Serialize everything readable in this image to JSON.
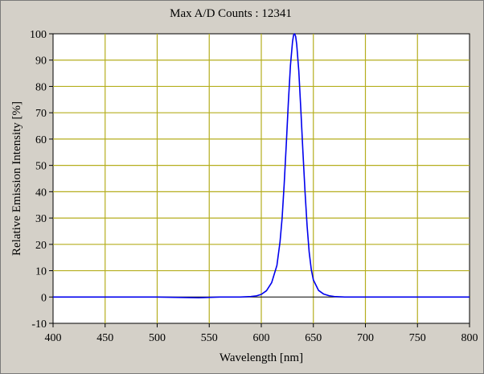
{
  "window": {
    "title": "Max A/D Counts : 12341"
  },
  "colors": {
    "background": "#d4d0c8",
    "plot_area": "#ffffff",
    "grid": "#b5ae1e",
    "zero_line": "#000000",
    "series": "#0000ee"
  },
  "chart_data": {
    "type": "line",
    "title": "Max A/D Counts : 12341",
    "xlabel": "Wavelength [nm]",
    "ylabel": "Relative Emission Intensity [%]",
    "xlim": [
      400,
      800
    ],
    "ylim": [
      -10,
      100
    ],
    "x_ticks": [
      "400",
      "450",
      "500",
      "550",
      "600",
      "650",
      "700",
      "750",
      "800"
    ],
    "y_ticks": [
      "-10",
      "0",
      "10",
      "20",
      "30",
      "40",
      "50",
      "60",
      "70",
      "80",
      "90",
      "100"
    ],
    "grid": true,
    "legend": "none",
    "series": [
      {
        "color": "#0000ee",
        "x": [
          400,
          500,
          540,
          560,
          580,
          590,
          595,
          600,
          605,
          610,
          615,
          618,
          620,
          622,
          624,
          626,
          628,
          630,
          631,
          632,
          633,
          634,
          636,
          638,
          640,
          642,
          644,
          646,
          648,
          650,
          655,
          660,
          665,
          670,
          680,
          700,
          800
        ],
        "y": [
          0,
          0,
          -0.3,
          0,
          0,
          0.2,
          0.4,
          1.0,
          2.4,
          5.5,
          12,
          21,
          30,
          43,
          58,
          74,
          88,
          97,
          99.5,
          100,
          99,
          96,
          86,
          71,
          55,
          40,
          27,
          17,
          10.5,
          6.5,
          2.5,
          1.1,
          0.5,
          0.2,
          0,
          0,
          0
        ]
      }
    ]
  }
}
